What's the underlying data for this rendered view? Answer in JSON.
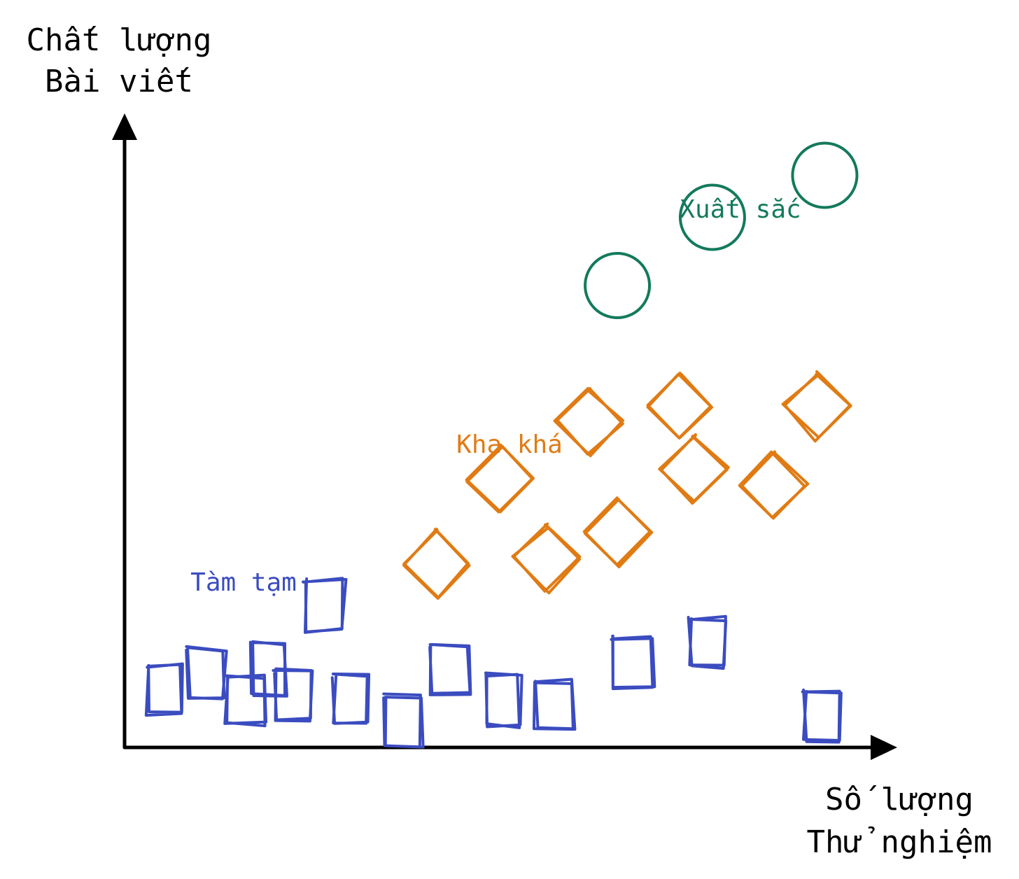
{
  "chart_data": {
    "type": "scatter",
    "title": "",
    "ylabel": [
      "Chất lượng",
      "Bài viết"
    ],
    "xlabel": [
      "Số lượng",
      "Thử nghiệm"
    ],
    "grid": false,
    "legend": "none",
    "series": [
      {
        "name": "Tàm tạm",
        "marker": "square",
        "color": "#3B4CC0",
        "points": [
          {
            "x": 5.4,
            "y": 1.1
          },
          {
            "x": 10.9,
            "y": 1.4
          },
          {
            "x": 16.3,
            "y": 0.9
          },
          {
            "x": 19.2,
            "y": 1.5
          },
          {
            "x": 22.6,
            "y": 1.0
          },
          {
            "x": 26.7,
            "y": 2.7
          },
          {
            "x": 30.3,
            "y": 0.9
          },
          {
            "x": 37.3,
            "y": 0.5
          },
          {
            "x": 43.4,
            "y": 1.5
          },
          {
            "x": 50.5,
            "y": 0.9
          },
          {
            "x": 57.4,
            "y": 0.8
          },
          {
            "x": 67.9,
            "y": 1.6
          },
          {
            "x": 77.8,
            "y": 2.0
          },
          {
            "x": 93.2,
            "y": 0.6
          }
        ]
      },
      {
        "name": "Kha khá",
        "marker": "diamond",
        "color": "#E07B14",
        "points": [
          {
            "x": 41.7,
            "y": 3.5
          },
          {
            "x": 50.2,
            "y": 5.1
          },
          {
            "x": 56.4,
            "y": 3.6
          },
          {
            "x": 62.1,
            "y": 6.2
          },
          {
            "x": 66.0,
            "y": 4.1
          },
          {
            "x": 74.1,
            "y": 6.5
          },
          {
            "x": 76.1,
            "y": 5.3
          },
          {
            "x": 86.6,
            "y": 5.0
          },
          {
            "x": 92.5,
            "y": 6.5
          }
        ]
      },
      {
        "name": "Xuất sắc",
        "marker": "circle",
        "color": "#137A5C",
        "points": [
          {
            "x": 65.8,
            "y": 8.8
          },
          {
            "x": 78.5,
            "y": 10.1
          },
          {
            "x": 93.5,
            "y": 10.9
          }
        ]
      }
    ]
  },
  "colors": {
    "axis": "#000000",
    "background": "#ffffff"
  }
}
